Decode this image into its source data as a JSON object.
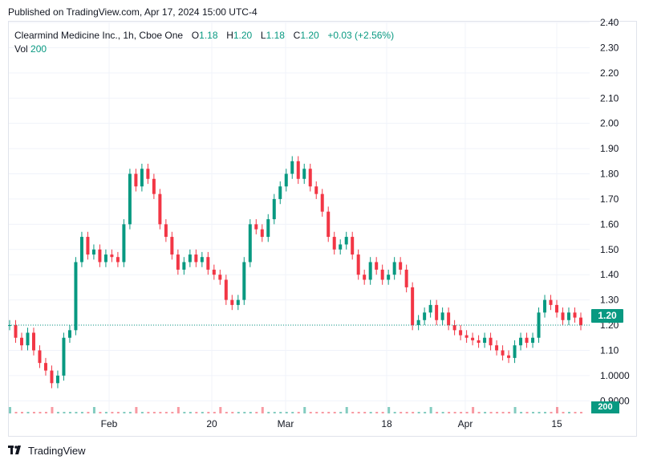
{
  "published_line": "Published on TradingView.com, Apr 17, 2024 15:00 UTC-4",
  "legend": {
    "symbol": "Clearmind Medicine Inc., 1h, Cboe One",
    "o_label": "O",
    "o_value": "1.18",
    "h_label": "H",
    "h_value": "1.20",
    "l_label": "L",
    "l_value": "1.18",
    "c_label": "C",
    "c_value": "1.20",
    "change": "+0.03 (+2.56%)",
    "vol_label": "Vol",
    "vol_value": "200"
  },
  "last_price_badge": "1.20",
  "volume_badge": "200",
  "footer_brand": "TradingView",
  "colors": {
    "up": "#089981",
    "down": "#f23645",
    "grid": "#f0f3fa",
    "text": "#131722"
  },
  "chart_data": {
    "type": "candlestick",
    "title": "Clearmind Medicine Inc., 1h, Cboe One",
    "ylim": [
      0.85,
      2.4
    ],
    "y_ticks": [
      "2.40",
      "2.30",
      "2.20",
      "2.10",
      "2.00",
      "1.90",
      "1.80",
      "1.70",
      "1.60",
      "1.50",
      "1.40",
      "1.30",
      "1.20",
      "1.10",
      "1.0000",
      "0.9000"
    ],
    "x_ticks": [
      "Feb",
      "20",
      "Mar",
      "18",
      "Apr",
      "15"
    ],
    "last_price": 1.2,
    "grid": true,
    "series": [
      {
        "name": "close",
        "values": [
          1.2,
          1.15,
          1.12,
          1.17,
          1.1,
          1.05,
          1.02,
          0.97,
          1.0,
          1.15,
          1.18,
          1.45,
          1.55,
          1.48,
          1.5,
          1.45,
          1.48,
          1.47,
          1.45,
          1.6,
          1.8,
          1.75,
          1.82,
          1.78,
          1.72,
          1.6,
          1.55,
          1.48,
          1.42,
          1.45,
          1.48,
          1.45,
          1.47,
          1.42,
          1.4,
          1.38,
          1.3,
          1.28,
          1.3,
          1.45,
          1.6,
          1.58,
          1.55,
          1.62,
          1.7,
          1.75,
          1.8,
          1.85,
          1.78,
          1.82,
          1.75,
          1.72,
          1.65,
          1.55,
          1.5,
          1.52,
          1.55,
          1.48,
          1.4,
          1.38,
          1.45,
          1.42,
          1.38,
          1.4,
          1.45,
          1.42,
          1.35,
          1.2,
          1.22,
          1.25,
          1.28,
          1.22,
          1.25,
          1.2,
          1.18,
          1.16,
          1.15,
          1.14,
          1.13,
          1.15,
          1.12,
          1.1,
          1.08,
          1.07,
          1.12,
          1.15,
          1.13,
          1.15,
          1.25,
          1.3,
          1.28,
          1.25,
          1.22,
          1.25,
          1.23,
          1.2
        ]
      }
    ]
  }
}
